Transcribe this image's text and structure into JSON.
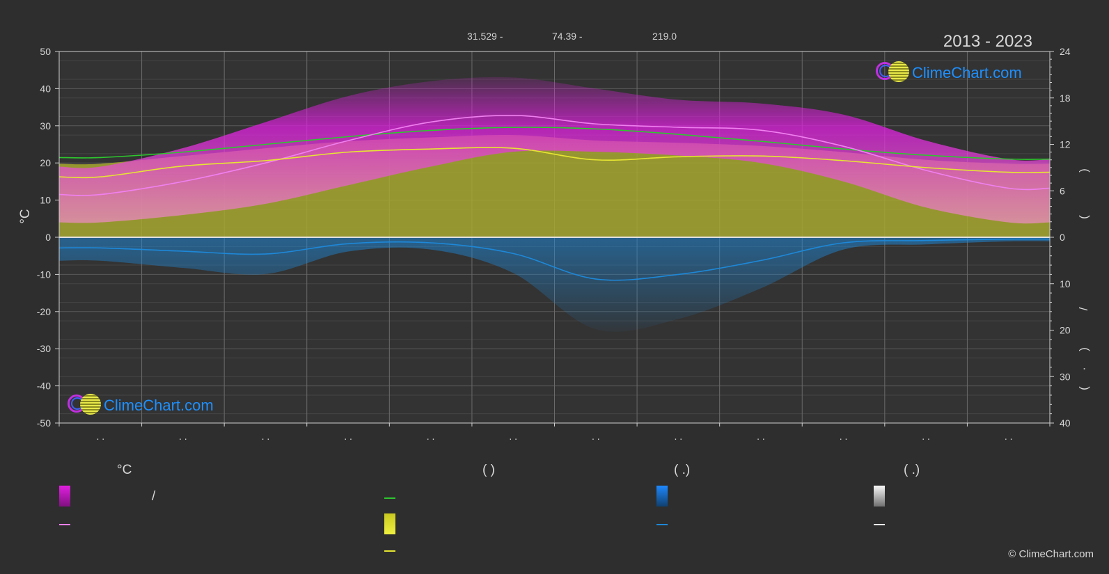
{
  "header": {
    "year_range": "2013 - 2023",
    "info_values": [
      "31.529 -",
      "74.39 -",
      "219.0"
    ]
  },
  "brand": {
    "name": "ClimeChart.com",
    "copyright": "© ClimeChart.com"
  },
  "chart_data": {
    "type": "area",
    "months": 12,
    "x": [
      0.5,
      1.5,
      2.5,
      3.5,
      4.5,
      5.5,
      6.5,
      7.5,
      8.5,
      9.5,
      10.5,
      11.5
    ],
    "month_labels": [
      ". .",
      ". .",
      ". .",
      ". .",
      ". .",
      ". .",
      ". .",
      ". .",
      ". .",
      ". .",
      ". .",
      ". ."
    ],
    "left_axis": {
      "label": "°C",
      "ylim": [
        -50,
        50
      ],
      "ticks": [
        50,
        40,
        30,
        20,
        10,
        0,
        -10,
        -20,
        -30,
        -40,
        -50
      ]
    },
    "right_axis_top": {
      "ylim": [
        0,
        24
      ],
      "ticks": [
        24,
        18,
        12,
        6,
        0
      ],
      "label_chars": [
        ")",
        "("
      ]
    },
    "right_axis_bottom": {
      "ylim": [
        0,
        40
      ],
      "ticks": [
        0,
        10,
        20,
        30,
        40
      ],
      "label_chars": [
        "/",
        ")",
        "·",
        "("
      ]
    },
    "grid": true,
    "series": [
      {
        "key": "daylight_hours",
        "color": "#2ec82e",
        "axis": "right_top",
        "values": [
          10.3,
          11.0,
          12.0,
          13.0,
          13.8,
          14.2,
          14.0,
          13.3,
          12.4,
          11.4,
          10.6,
          10.1
        ]
      },
      {
        "key": "avg_max_temp",
        "color": "#f080f0",
        "axis": "left",
        "values": [
          11.5,
          15,
          20,
          26,
          31,
          32.8,
          30.5,
          29.6,
          28.8,
          24.5,
          18,
          13.2
        ]
      },
      {
        "key": "sunshine_hours",
        "color": "#e6e632",
        "axis": "right_top",
        "values": [
          7.8,
          9.2,
          9.9,
          11.0,
          11.4,
          11.5,
          10.0,
          10.4,
          10.5,
          9.9,
          9.0,
          8.4
        ]
      },
      {
        "key": "precipitation_mm",
        "color": "#1e88d8",
        "axis": "right_bottom",
        "values": [
          2.3,
          3.0,
          3.6,
          1.4,
          1.2,
          3.5,
          9.0,
          8.0,
          5.0,
          1.2,
          0.7,
          0.4
        ]
      }
    ],
    "bands": [
      {
        "key": "temp_range",
        "color": "#e020e0",
        "upper": [
          19,
          24,
          31,
          38,
          42,
          43,
          40,
          37,
          36,
          33,
          26,
          21
        ],
        "lower": [
          4,
          6,
          9,
          14,
          19,
          23,
          23,
          22,
          20,
          15,
          8,
          4
        ]
      },
      {
        "key": "sunshine_range",
        "color": "#e6e632",
        "axis": "right_top",
        "upper": [
          9.5,
          10.5,
          11.5,
          12.4,
          12.9,
          13.2,
          12.5,
          12.2,
          11.8,
          11.0,
          10.0,
          9.5
        ]
      }
    ]
  },
  "legend": {
    "headers": [
      "°C",
      "(          )",
      "(    .)",
      "(    .)"
    ],
    "items": [
      {
        "text": "/",
        "swatch": "gradient",
        "color": "#e020e0"
      },
      {
        "text": "",
        "swatch": "line",
        "color": "#f080f0"
      },
      {
        "text": "",
        "swatch": "line",
        "color": "#2ec82e"
      },
      {
        "text": "",
        "swatch": "gradient",
        "color": "#e6e632"
      },
      {
        "text": "",
        "swatch": "line",
        "color": "#e6e632"
      },
      {
        "text": "",
        "swatch": "gradient",
        "color": "#1e88d8"
      },
      {
        "text": "",
        "swatch": "line",
        "color": "#1e88d8"
      },
      {
        "text": "",
        "swatch": "gradient",
        "color": "#f0f0f0"
      },
      {
        "text": "",
        "swatch": "line",
        "color": "#f0f0f0"
      }
    ]
  }
}
